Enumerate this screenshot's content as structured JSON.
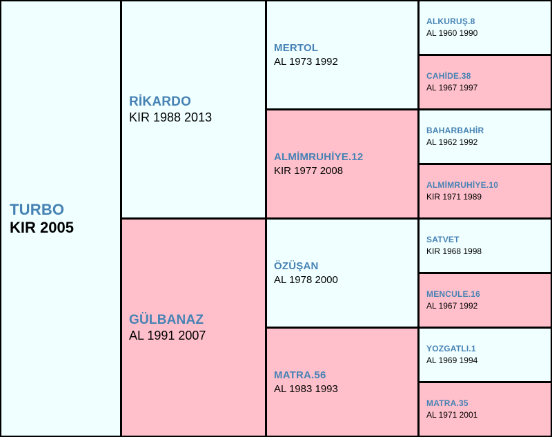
{
  "subject": {
    "name": "TURBO",
    "info": "KIR 2005"
  },
  "sire": {
    "name": "RİKARDO",
    "info": "KIR 1988 2013"
  },
  "dam": {
    "name": "GÜLBANAZ",
    "info": "AL 1991 2007"
  },
  "sire_sire": {
    "name": "MERTOL",
    "info": "AL 1973 1992"
  },
  "sire_dam": {
    "name": "ALMİMRUHİYE.12",
    "info": "KIR 1977 2008"
  },
  "dam_sire": {
    "name": "ÖZÜŞAN",
    "info": "AL 1978 2000"
  },
  "dam_dam": {
    "name": "MATRA.56",
    "info": "AL 1983 1993"
  },
  "ggen": [
    {
      "name": "ALKURUŞ.8",
      "info": "AL 1960 1990"
    },
    {
      "name": "CAHİDE.38",
      "info": "AL 1967 1997"
    },
    {
      "name": "BAHARBAHİR",
      "info": "AL 1962 1992"
    },
    {
      "name": "ALMİMRUHİYE.10",
      "info": "KIR 1971 1989"
    },
    {
      "name": "SATVET",
      "info": "KIR 1968 1998"
    },
    {
      "name": "MENCULE.16",
      "info": "AL 1967 1992"
    },
    {
      "name": "YOZGATLI.1",
      "info": "AL 1969 1994"
    },
    {
      "name": "MATRA.35",
      "info": "AL 1971 2001"
    }
  ],
  "colors": {
    "male_bg": "#f0ffff",
    "female_bg": "#ffc0cb",
    "name_text": "#4682b4",
    "grid": "#000000"
  }
}
